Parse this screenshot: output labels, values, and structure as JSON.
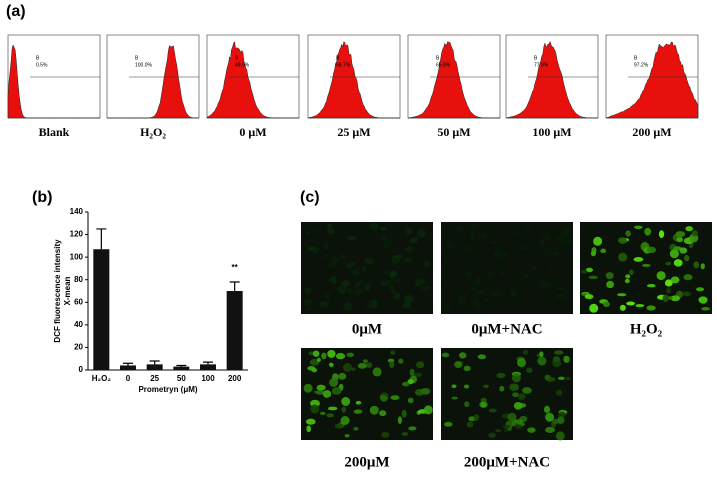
{
  "panels": {
    "a": {
      "label": "(a)",
      "histograms": [
        {
          "name": "Blank",
          "gate": "B",
          "percent": "0.5%"
        },
        {
          "name": "H₂O₂",
          "gate": "B",
          "percent": "100.0%"
        },
        {
          "name": "0 μM",
          "gate": "B",
          "percent": "49.5%"
        },
        {
          "name": "25 μM",
          "gate": "B",
          "percent": "58.7%"
        },
        {
          "name": "50 μM",
          "gate": "B",
          "percent": "65.8%"
        },
        {
          "name": "100 μM",
          "gate": "B",
          "percent": "77.8%"
        },
        {
          "name": "200 μM",
          "gate": "B",
          "percent": "97.2%"
        }
      ]
    },
    "b": {
      "label": "(b)"
    },
    "c": {
      "label": "(c)",
      "images": [
        "0μM",
        "0μM+NAC",
        "H₂O₂",
        "200μM",
        "200μM+NAC"
      ]
    }
  },
  "chart_data": {
    "type": "bar",
    "y_label": [
      "DCF fluorescence intensity",
      "X-mean"
    ],
    "x_label": "Prometryn (μM)",
    "categories": [
      "H₂O₂",
      "0",
      "25",
      "50",
      "100",
      "200"
    ],
    "values": [
      107,
      4,
      5,
      3,
      5,
      70
    ],
    "errors": [
      18,
      2,
      3,
      1,
      2,
      8
    ],
    "color": "#111111",
    "annotations": [
      {
        "category": "200",
        "text": "**"
      }
    ],
    "ylim": [
      0,
      140
    ],
    "yticks": [
      0,
      20,
      40,
      60,
      80,
      100,
      120,
      140
    ]
  }
}
